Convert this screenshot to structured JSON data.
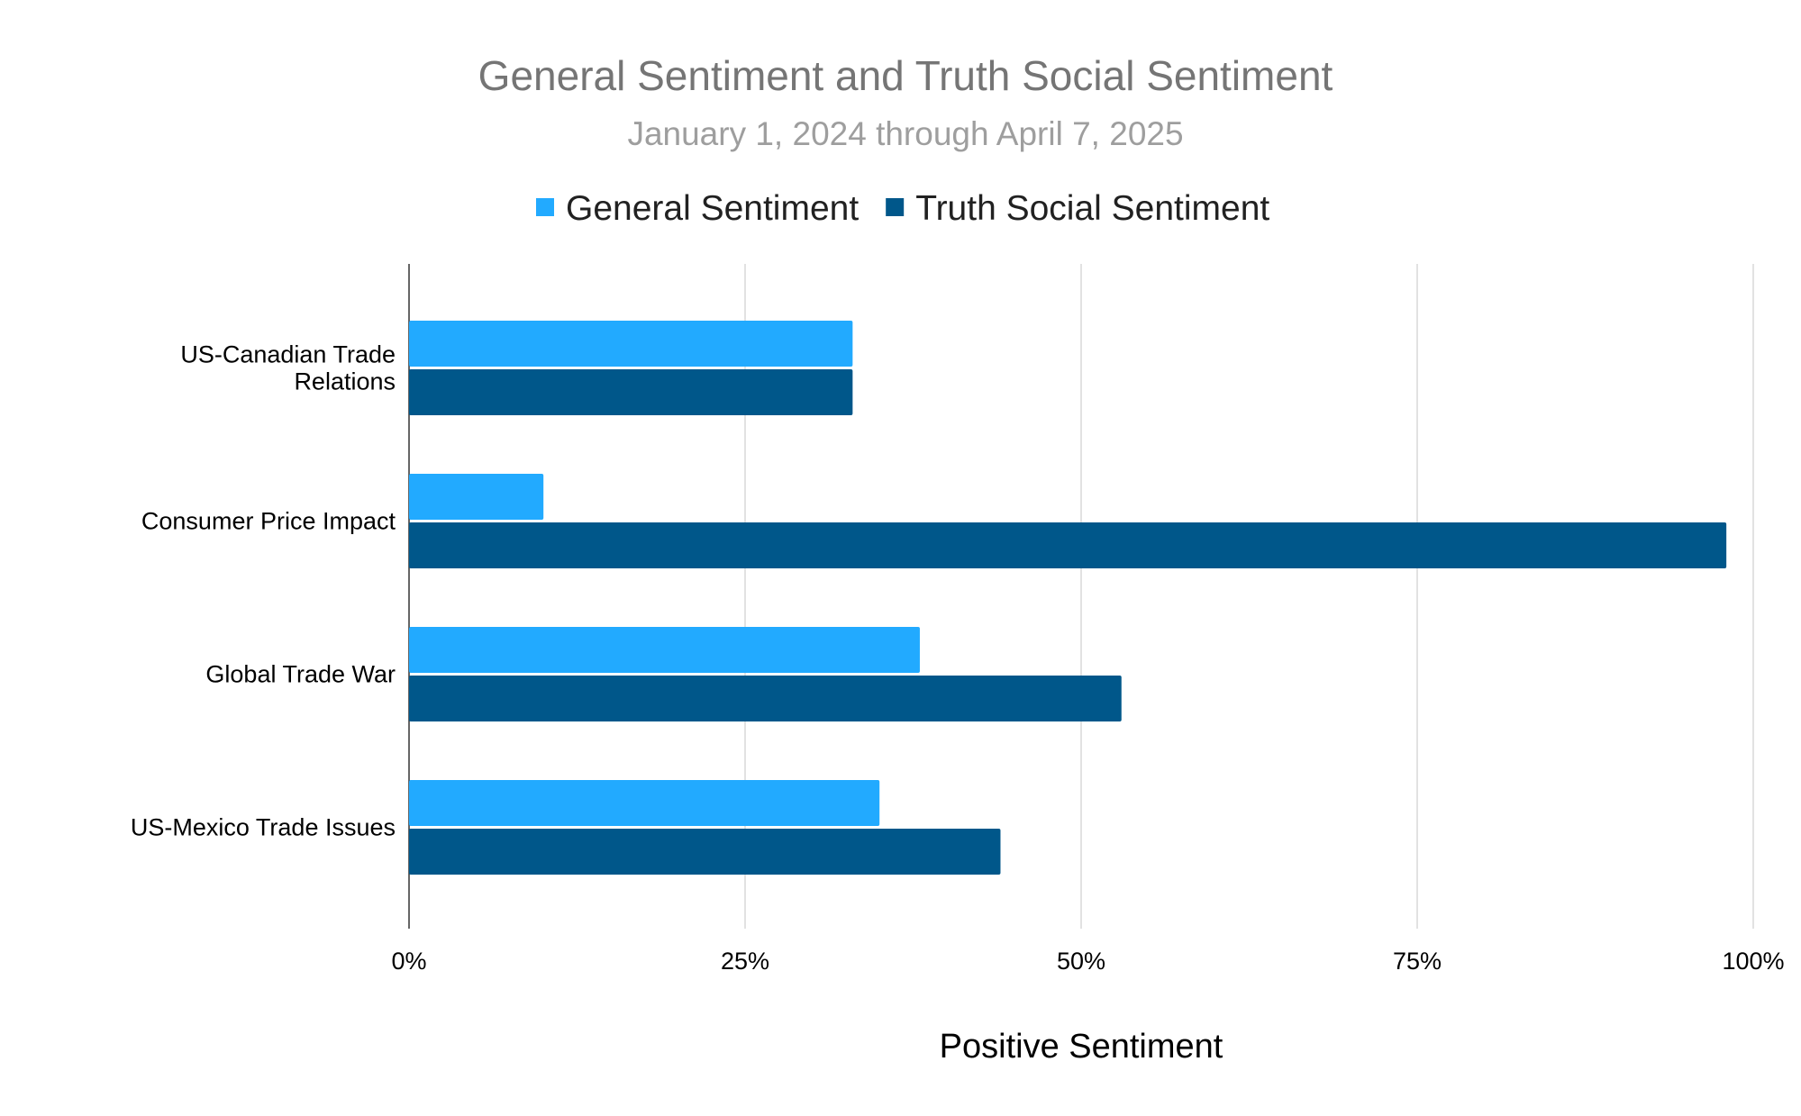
{
  "chart_data": {
    "type": "bar",
    "orientation": "horizontal",
    "title": "General Sentiment and Truth Social Sentiment",
    "subtitle": "January 1, 2024 through April 7, 2025",
    "xlabel": "Positive Sentiment",
    "ylabel": "",
    "categories": [
      [
        "US-Canadian Trade",
        "Relations"
      ],
      [
        "Consumer Price Impact"
      ],
      [
        "Global Trade War"
      ],
      [
        "US-Mexico Trade Issues"
      ]
    ],
    "series": [
      {
        "name": "General Sentiment",
        "color": "#22aaff",
        "values": [
          33,
          10,
          38,
          35
        ]
      },
      {
        "name": "Truth Social Sentiment",
        "color": "#00578a",
        "values": [
          33,
          98,
          53,
          44
        ]
      }
    ],
    "xlim": [
      0,
      100
    ],
    "x_ticks": [
      "0%",
      "25%",
      "50%",
      "75%",
      "100%"
    ],
    "x_tick_values": [
      0,
      25,
      50,
      75,
      100
    ],
    "unit": "%",
    "grid": true,
    "legend": "top"
  }
}
